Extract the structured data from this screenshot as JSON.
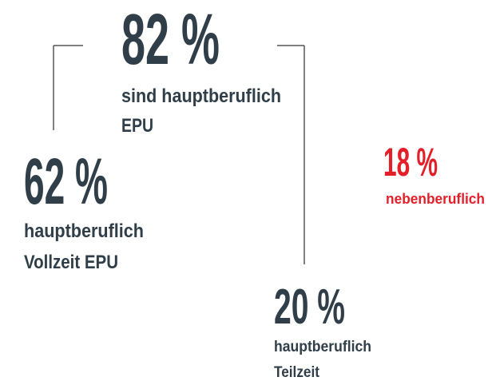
{
  "items": [
    {
      "value": "82 %",
      "label": [
        "sind hauptberuflich",
        "EPU"
      ]
    },
    {
      "value": "62 %",
      "label": [
        "hauptberuflich",
        "Vollzeit EPU"
      ]
    },
    {
      "value": "20 %",
      "label": [
        "hauptberuflich",
        "Teilzeit"
      ]
    },
    {
      "value": "18 %",
      "label": [
        "nebenberuflich"
      ]
    }
  ]
}
